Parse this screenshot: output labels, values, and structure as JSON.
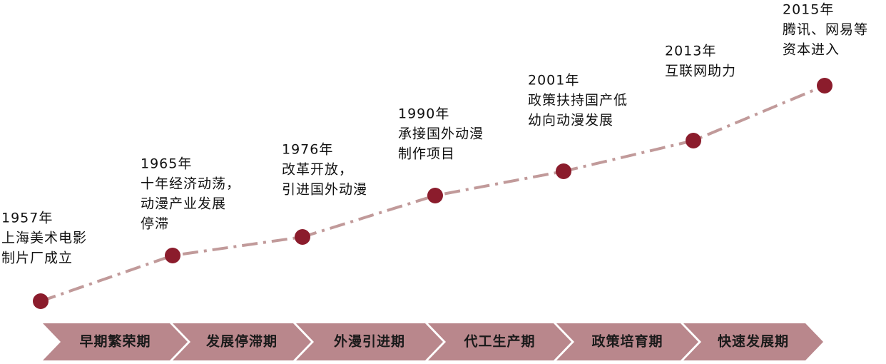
{
  "events": [
    {
      "year": "1957年",
      "lines": [
        "上海美术电影",
        "制片厂成立"
      ]
    },
    {
      "year": "1965年",
      "lines": [
        "十年经济动荡，",
        "动漫产业发展",
        "停滞"
      ]
    },
    {
      "year": "1976年",
      "lines": [
        "改革开放，",
        "引进国外动漫"
      ]
    },
    {
      "year": "1990年",
      "lines": [
        "承接国外动漫",
        "制作项目"
      ]
    },
    {
      "year": "2001年",
      "lines": [
        "政策扶持国产低",
        "幼向动漫发展"
      ]
    },
    {
      "year": "2013年",
      "lines": [
        "互联网助力"
      ]
    },
    {
      "year": "2015年",
      "lines": [
        "腾讯、网易等",
        "资本进入"
      ]
    }
  ],
  "phases": [
    "早期繁荣期",
    "发展停滞期",
    "外漫引进期",
    "代工生产期",
    "政策培育期",
    "快速发展期"
  ]
}
